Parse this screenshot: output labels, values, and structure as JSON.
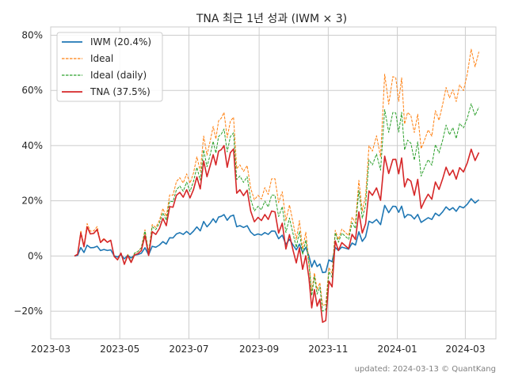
{
  "chart_data": {
    "type": "line",
    "title": "TNA 최근 1년 성과 (IWM × 3)",
    "footer": "updated: 2024-03-13 © QuantKang",
    "x_ticks": [
      "2023-03",
      "2023-05",
      "2023-07",
      "2023-09",
      "2023-11",
      "2024-01",
      "2024-03"
    ],
    "y_ticks": [
      "80%",
      "60%",
      "40%",
      "20%",
      "0%",
      "−20%"
    ],
    "y_tick_values": [
      80,
      60,
      40,
      20,
      0,
      -20
    ],
    "ylim": [
      -30,
      83
    ],
    "xlim": [
      "2023-03-01",
      "2024-03-28"
    ],
    "legend_position": "top-left",
    "grid": true,
    "x": [
      "2023-03-22",
      "2023-04-05",
      "2023-04-20",
      "2023-05-05",
      "2023-05-20",
      "2023-06-05",
      "2023-06-20",
      "2023-07-05",
      "2023-07-20",
      "2023-08-01",
      "2023-08-15",
      "2023-08-31",
      "2023-09-15",
      "2023-10-01",
      "2023-10-15",
      "2023-10-27",
      "2023-11-10",
      "2023-11-25",
      "2023-12-10",
      "2023-12-28",
      "2024-01-10",
      "2024-01-25",
      "2024-02-10",
      "2024-02-25",
      "2024-03-13"
    ],
    "series": [
      {
        "name": "IWM (20.4%)",
        "color": "#1f77b4",
        "dash": "solid",
        "values": [
          0,
          3,
          2,
          -1,
          1,
          4,
          8,
          9,
          12,
          15,
          11,
          8,
          9,
          4,
          0,
          -6,
          2,
          4,
          12,
          18,
          15,
          13,
          16,
          18,
          20.4
        ]
      },
      {
        "name": "Ideal",
        "color": "#ff7f0e",
        "dash": "dashed",
        "values": [
          0,
          9,
          5,
          -3,
          3,
          13,
          27,
          30,
          42,
          52,
          33,
          22,
          28,
          12,
          -2,
          -18,
          6,
          12,
          38,
          65,
          52,
          42,
          55,
          62,
          74
        ]
      },
      {
        "name": "Ideal (daily)",
        "color": "#2ca02c",
        "dash": "dashed",
        "values": [
          0,
          8,
          5,
          -3,
          3,
          12,
          24,
          27,
          37,
          46,
          29,
          18,
          22,
          8,
          -3,
          -20,
          5,
          10,
          33,
          52,
          42,
          32,
          42,
          48,
          54
        ]
      },
      {
        "name": "TNA (37.5%)",
        "color": "#d62728",
        "dash": "solid",
        "values": [
          0,
          8,
          5,
          -3,
          2,
          10,
          22,
          24,
          33,
          40,
          24,
          14,
          16,
          2,
          -8,
          -24,
          2,
          6,
          22,
          35,
          28,
          20,
          28,
          32,
          37.5
        ]
      }
    ]
  }
}
